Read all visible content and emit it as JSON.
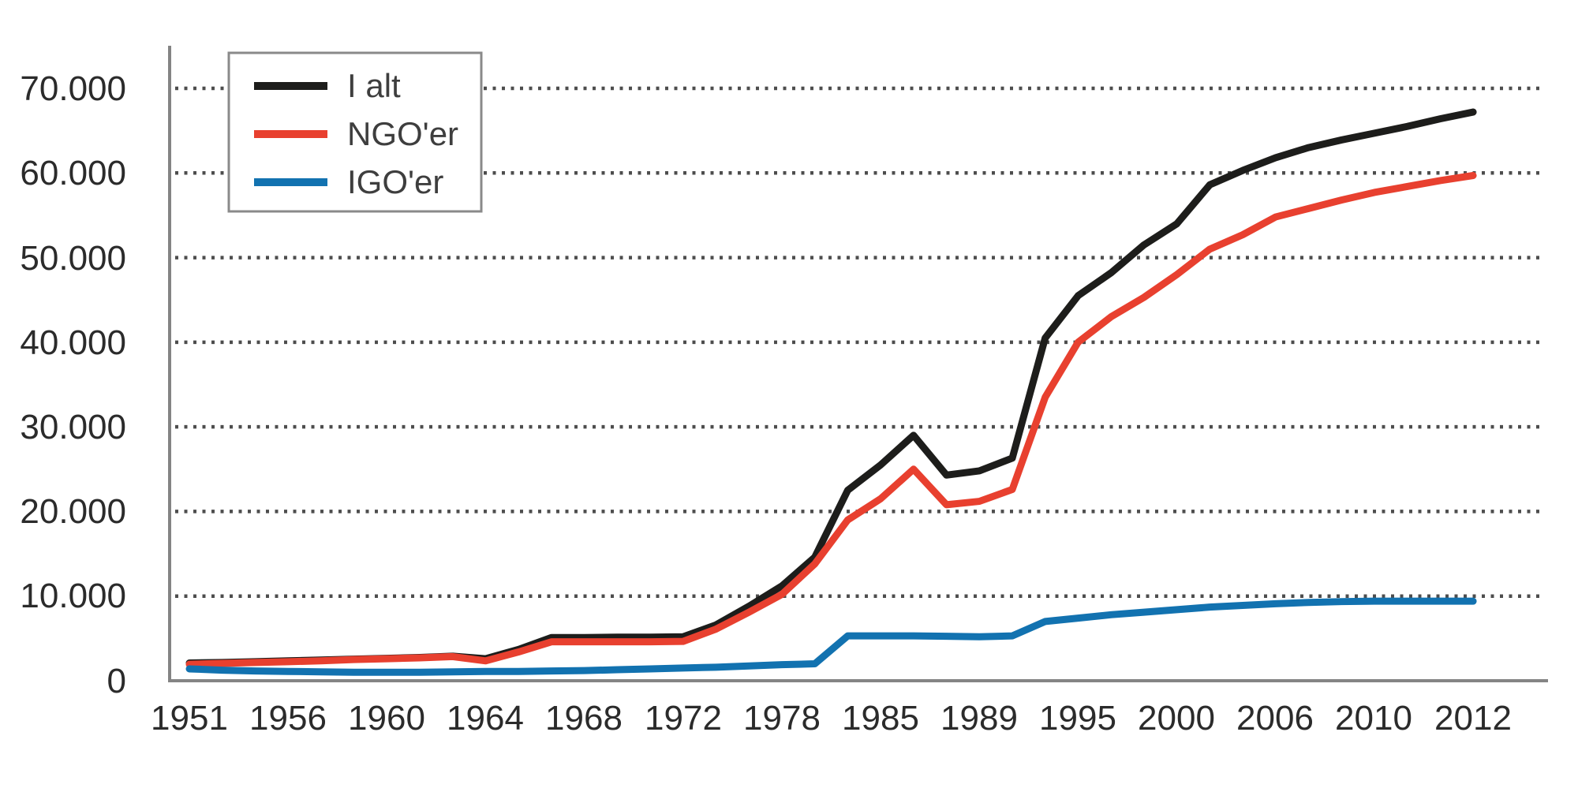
{
  "page": {
    "background": "#ffffff",
    "description_not_rendered": ""
  },
  "chart_data": {
    "type": "line",
    "title": "",
    "xlabel": "",
    "ylabel": "",
    "ylim": [
      0,
      70000
    ],
    "grid": "horizontal-dotted",
    "legend_position": "top-left",
    "axis_color": "#848484",
    "grid_dot_color": "#4d4d4d",
    "tick_text_color": "#2b2b2b",
    "legend_border_color": "#8a8a8a",
    "legend_fill": "#ffffff",
    "y_tick_labels": [
      "0",
      "10.000",
      "20.000",
      "30.000",
      "40.000",
      "50.000",
      "60.000",
      "70.000"
    ],
    "x_tick_labels": [
      "1951",
      "1956",
      "1960",
      "1964",
      "1968",
      "1972",
      "1978",
      "1985",
      "1989",
      "1995",
      "2000",
      "2006",
      "2010",
      "2012"
    ],
    "x_tick_indices": [
      0,
      3,
      6,
      9,
      12,
      15,
      18,
      21,
      24,
      27,
      30,
      33,
      36,
      39
    ],
    "n_points": 40,
    "series": [
      {
        "name": "I alt",
        "color": "#1d1d1b",
        "values": [
          2100,
          2150,
          2250,
          2350,
          2450,
          2550,
          2650,
          2750,
          2900,
          2600,
          3700,
          5100,
          5100,
          5150,
          5150,
          5200,
          6600,
          8800,
          11200,
          14600,
          22500,
          25500,
          29000,
          24300,
          24800,
          26300,
          40500,
          45500,
          48200,
          51500,
          54000,
          58600,
          60300,
          61800,
          63000,
          63900,
          64700,
          65500,
          66400,
          67200
        ]
      },
      {
        "name": "NGO'er",
        "color": "#e8402f",
        "values": [
          1950,
          2050,
          2150,
          2250,
          2350,
          2500,
          2600,
          2700,
          2850,
          2350,
          3400,
          4600,
          4600,
          4600,
          4600,
          4650,
          6100,
          8100,
          10200,
          13800,
          19000,
          21500,
          25000,
          20800,
          21200,
          22600,
          33500,
          40000,
          43000,
          45300,
          48000,
          51000,
          52700,
          54800,
          55800,
          56800,
          57700,
          58400,
          59100,
          59700
        ]
      },
      {
        "name": "IGO'er",
        "color": "#1272b0",
        "values": [
          1400,
          1250,
          1150,
          1100,
          1050,
          1000,
          1000,
          1000,
          1050,
          1100,
          1100,
          1150,
          1200,
          1300,
          1400,
          1500,
          1600,
          1750,
          1900,
          2000,
          5300,
          5300,
          5300,
          5250,
          5200,
          5300,
          7000,
          7400,
          7800,
          8100,
          8400,
          8700,
          8900,
          9100,
          9250,
          9350,
          9400,
          9400,
          9400,
          9400
        ]
      }
    ]
  }
}
